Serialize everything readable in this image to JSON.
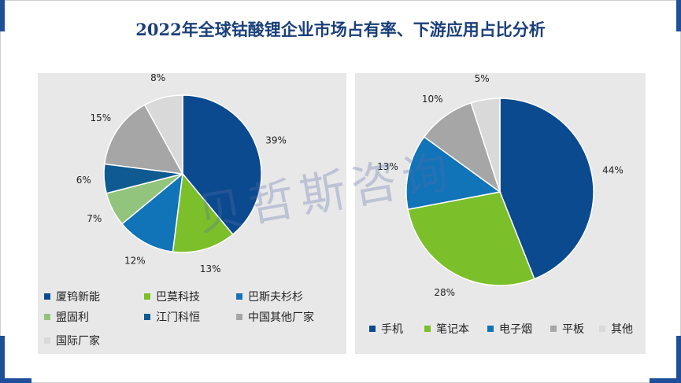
{
  "title": "2022年全球钴酸锂企业市场占有率、下游应用占比分析",
  "watermark": "贝哲斯咨询",
  "colors": {
    "accent": "#1f4e9a",
    "dark_blue": "#0b4a8f",
    "green": "#7bbf2a",
    "mid_blue": "#1173b8",
    "light_green": "#93c47d",
    "navy": "#0f5b91",
    "gray": "#a6a6a6",
    "light_gray": "#d9d9d9"
  },
  "chart_data": [
    {
      "type": "pie",
      "title": "",
      "categories": [
        "厦钨新能",
        "巴莫科技",
        "巴斯夫杉杉",
        "盟固利",
        "江门科恒",
        "中国其他厂家",
        "国际厂家"
      ],
      "values": [
        39,
        13,
        12,
        7,
        6,
        15,
        8
      ],
      "data_labels": [
        "39%",
        "13%",
        "12%",
        "7%",
        "6%",
        "15%",
        "8%"
      ],
      "colors": [
        "#0b4a8f",
        "#7bbf2a",
        "#1173b8",
        "#93c47d",
        "#0f5b91",
        "#a6a6a6",
        "#d9d9d9"
      ],
      "legend_placement": "bottom"
    },
    {
      "type": "pie",
      "title": "",
      "categories": [
        "手机",
        "笔记本",
        "电子烟",
        "平板",
        "其他"
      ],
      "values": [
        44,
        28,
        13,
        10,
        5
      ],
      "data_labels": [
        "44%",
        "28%",
        "13%",
        "10%",
        "5%"
      ],
      "colors": [
        "#0b4a8f",
        "#7bbf2a",
        "#1173b8",
        "#a6a6a6",
        "#d9d9d9"
      ],
      "legend_placement": "bottom"
    }
  ]
}
